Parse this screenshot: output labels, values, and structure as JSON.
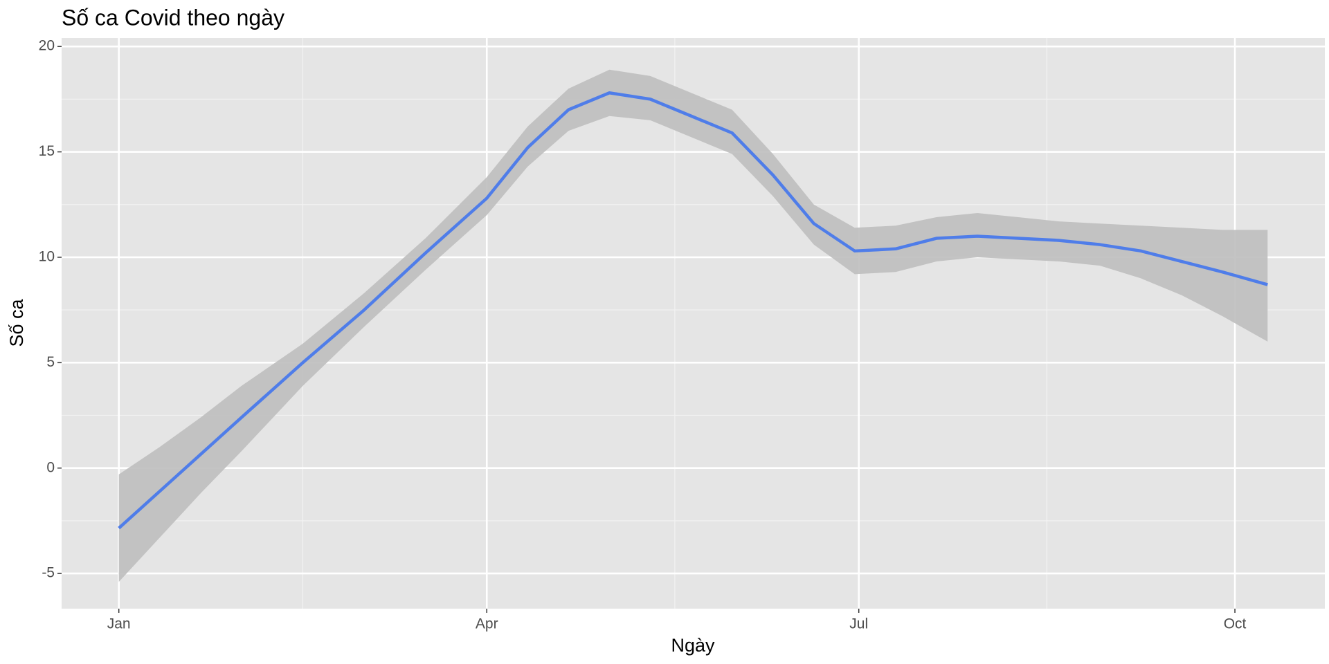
{
  "chart_data": {
    "type": "smooth",
    "title": "Số ca Covid theo ngày",
    "x_label": "Ngày",
    "y_label": "Số ca",
    "x": [
      0,
      10,
      20,
      30,
      45,
      60,
      75,
      90,
      100,
      110,
      120,
      130,
      140,
      150,
      160,
      170,
      180,
      190,
      200,
      210,
      220,
      230,
      240,
      250,
      260,
      270,
      281
    ],
    "values": [
      -2.85,
      -1.1,
      0.65,
      2.4,
      5.0,
      7.5,
      10.2,
      12.8,
      15.2,
      17.0,
      17.8,
      17.5,
      16.7,
      15.9,
      13.9,
      11.6,
      10.3,
      10.4,
      10.9,
      11.0,
      10.9,
      10.8,
      10.6,
      10.3,
      9.8,
      9.3,
      8.7
    ],
    "ci_upper": [
      -0.3,
      1.0,
      2.4,
      3.9,
      5.9,
      8.3,
      10.9,
      13.8,
      16.2,
      18.0,
      18.9,
      18.6,
      17.8,
      17.0,
      14.9,
      12.5,
      11.4,
      11.5,
      11.9,
      12.1,
      11.9,
      11.7,
      11.6,
      11.5,
      11.4,
      11.3,
      11.3
    ],
    "ci_lower": [
      -5.4,
      -3.3,
      -1.2,
      0.8,
      3.9,
      6.7,
      9.4,
      12.0,
      14.3,
      16.0,
      16.7,
      16.5,
      15.7,
      14.9,
      12.9,
      10.6,
      9.2,
      9.3,
      9.8,
      10.0,
      9.9,
      9.8,
      9.6,
      9.0,
      8.2,
      7.2,
      6.0
    ],
    "color": "#4f7de9",
    "band_color": "#bebebe",
    "xlim": [
      -14,
      295
    ],
    "ylim": [
      -6.67,
      20.4
    ],
    "xticks": [
      {
        "value": 0,
        "label": "Jan"
      },
      {
        "value": 90,
        "label": "Apr"
      },
      {
        "value": 181,
        "label": "Jul"
      },
      {
        "value": 273,
        "label": "Oct"
      }
    ],
    "minor_xticks": [
      45,
      136,
      227
    ],
    "yticks": [
      -5,
      0,
      5,
      10,
      15,
      20
    ],
    "minor_yticks": [
      -2.5,
      2.5,
      7.5,
      12.5,
      17.5
    ],
    "grid": true
  }
}
